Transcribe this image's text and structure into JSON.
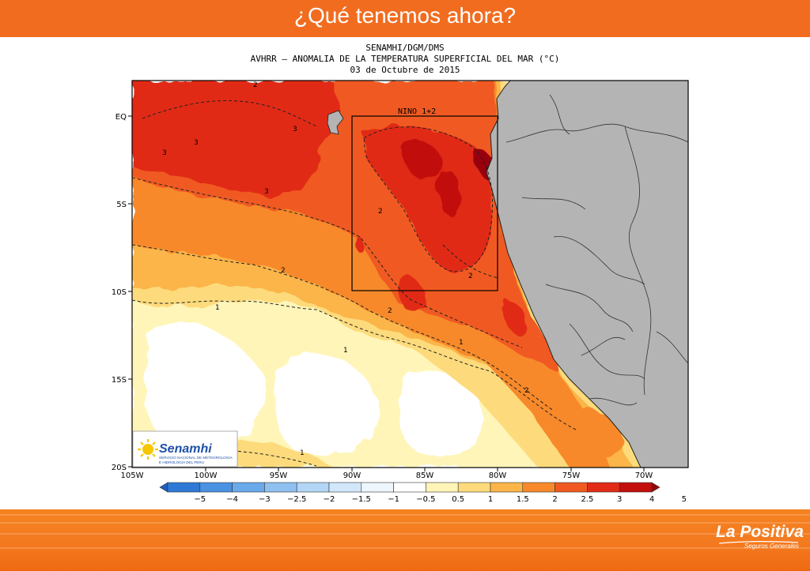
{
  "slide": {
    "title": "¿Qué tenemos ahora?"
  },
  "map": {
    "header": [
      "SENAMHI/DGM/DMS",
      "AVHRR – ANOMALIA DE LA TEMPERATURA SUPERFICIAL DEL MAR (°C)",
      "03 de Octubre de 2015"
    ],
    "region_label": "NINO 1+2",
    "lat_labels": [
      "EQ",
      "5S",
      "10S",
      "15S",
      "20S"
    ],
    "lon_labels": [
      "105W",
      "100W",
      "95W",
      "90W",
      "85W",
      "80W",
      "75W",
      "70W"
    ],
    "contour_labels": [
      "2",
      "3",
      "3",
      "3",
      "3",
      "2",
      "2",
      "2",
      "2",
      "2",
      "1",
      "1",
      "1",
      "1"
    ],
    "land_color": "#b4b4b4"
  },
  "colorbar": {
    "labels": [
      "-5",
      "-4",
      "-3",
      "-2.5",
      "-2",
      "-1.5",
      "-1",
      "-0.5",
      "0.5",
      "1",
      "1.5",
      "2",
      "2.5",
      "3",
      "4",
      "5"
    ],
    "colors": [
      "#1b5fc2",
      "#2f79d6",
      "#4a92e2",
      "#6aa9ea",
      "#8fc0f0",
      "#b3d6f6",
      "#d2e7fa",
      "#eef6fd",
      "#ffffff",
      "#fff5b8",
      "#fddb7c",
      "#fbb548",
      "#f7892b",
      "#f05a21",
      "#e12b16",
      "#c20f0c",
      "#980507"
    ]
  },
  "logo": {
    "line1": "Senamhi",
    "line2": "SERVICIO NACIONAL DE METEOROLOGIA",
    "line3": "E HIDROLOGIA DEL PERU"
  },
  "footer": {
    "brand": "La Positiva",
    "tagline": "Seguros Generales"
  }
}
